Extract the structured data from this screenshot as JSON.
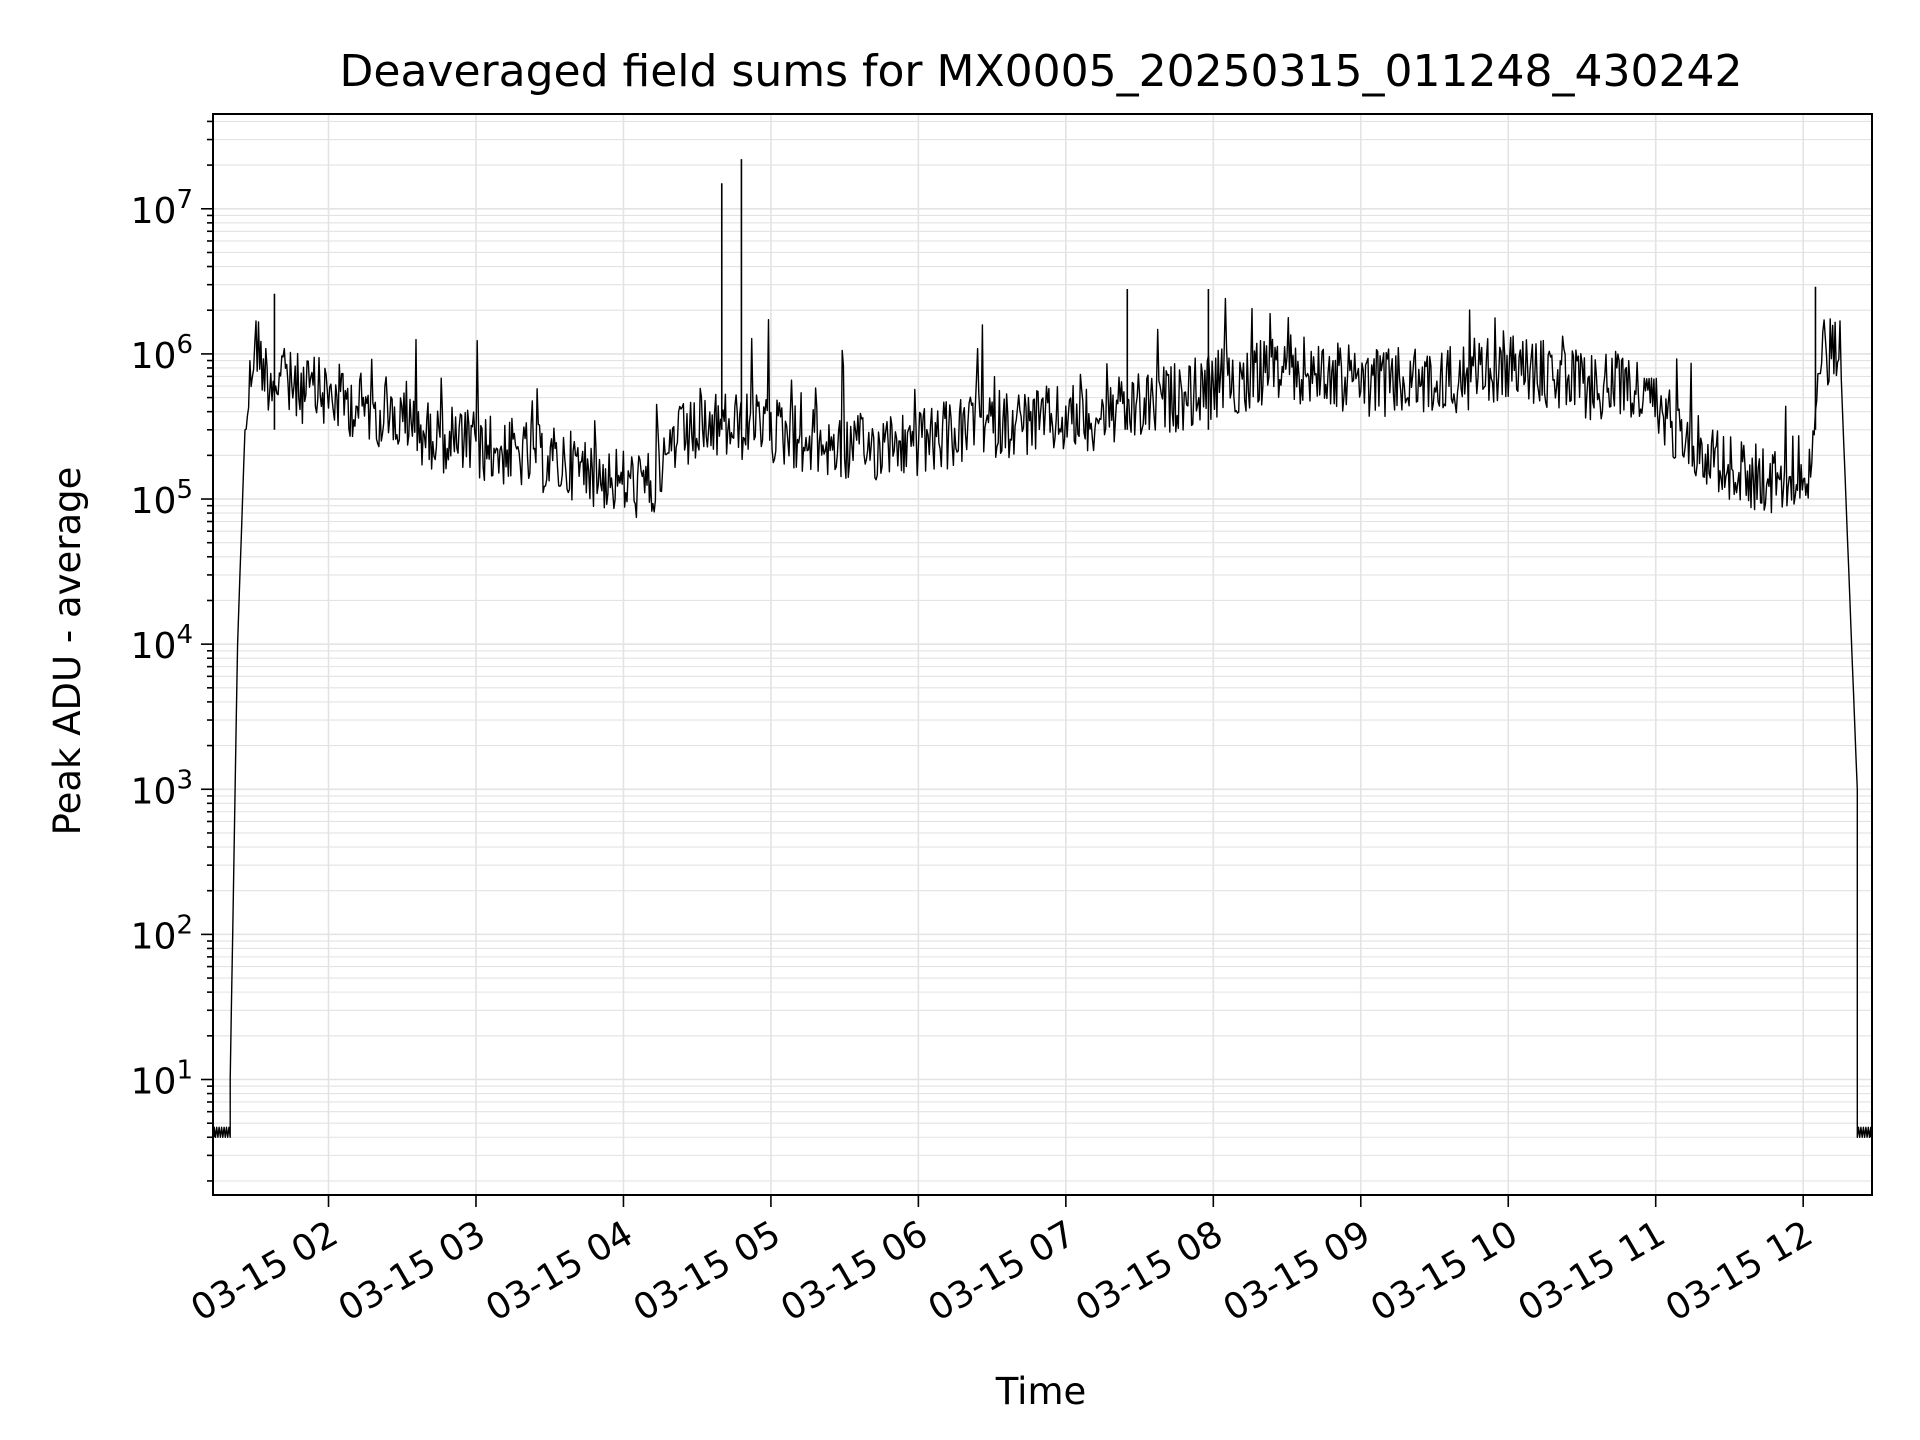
{
  "chart_data": {
    "type": "line",
    "title": "Deaveraged field sums for MX0005_20250315_011248_430242",
    "xlabel": "Time",
    "ylabel": "Peak ADU - average",
    "yscale": "log",
    "ylim": [
      1.6,
      45000000
    ],
    "xlim": [
      "2025-03-15 01:13",
      "2025-03-15 12:28"
    ],
    "grid": true,
    "line_color": "#000000",
    "grid_color": "#e3e3e3",
    "x_ticks": [
      {
        "value": "2025-03-15 02:00",
        "label": "03-15 02"
      },
      {
        "value": "2025-03-15 03:00",
        "label": "03-15 03"
      },
      {
        "value": "2025-03-15 04:00",
        "label": "03-15 04"
      },
      {
        "value": "2025-03-15 05:00",
        "label": "03-15 05"
      },
      {
        "value": "2025-03-15 06:00",
        "label": "03-15 06"
      },
      {
        "value": "2025-03-15 07:00",
        "label": "03-15 07"
      },
      {
        "value": "2025-03-15 08:00",
        "label": "03-15 08"
      },
      {
        "value": "2025-03-15 09:00",
        "label": "03-15 09"
      },
      {
        "value": "2025-03-15 10:00",
        "label": "03-15 10"
      },
      {
        "value": "2025-03-15 11:00",
        "label": "03-15 11"
      },
      {
        "value": "2025-03-15 12:00",
        "label": "03-15 12"
      }
    ],
    "y_ticks": [
      {
        "value": 10,
        "base": "10",
        "exp": "1"
      },
      {
        "value": 100,
        "base": "10",
        "exp": "2"
      },
      {
        "value": 1000,
        "base": "10",
        "exp": "3"
      },
      {
        "value": 10000,
        "base": "10",
        "exp": "4"
      },
      {
        "value": 100000,
        "base": "10",
        "exp": "5"
      },
      {
        "value": 1000000,
        "base": "10",
        "exp": "6"
      },
      {
        "value": 10000000,
        "base": "10",
        "exp": "7"
      }
    ],
    "series": [
      {
        "x": [
          "2025-03-15 01:13",
          "2025-03-15 01:20",
          "2025-03-15 01:20",
          "2025-03-15 01:23",
          "2025-03-15 01:26",
          "2025-03-15 01:30",
          "2025-03-15 01:35",
          "2025-03-15 01:45",
          "2025-03-15 02:00",
          "2025-03-15 02:20",
          "2025-03-15 02:40",
          "2025-03-15 03:00",
          "2025-03-15 03:20",
          "2025-03-15 03:40",
          "2025-03-15 04:00",
          "2025-03-15 04:12",
          "2025-03-15 04:20",
          "2025-03-15 04:40",
          "2025-03-15 05:00",
          "2025-03-15 05:30",
          "2025-03-15 06:00",
          "2025-03-15 06:30",
          "2025-03-15 07:00",
          "2025-03-15 07:30",
          "2025-03-15 08:00",
          "2025-03-15 08:30",
          "2025-03-15 09:00",
          "2025-03-15 09:30",
          "2025-03-15 10:00",
          "2025-03-15 10:30",
          "2025-03-15 10:50",
          "2025-03-15 11:10",
          "2025-03-15 11:30",
          "2025-03-15 11:50",
          "2025-03-15 12:03",
          "2025-03-15 12:08",
          "2025-03-15 12:15",
          "2025-03-15 12:22",
          "2025-03-15 12:22",
          "2025-03-15 12:28"
        ],
        "y": [
          4,
          4,
          10,
          10000,
          300000,
          1300000,
          700000,
          600000,
          520000,
          400000,
          280000,
          230000,
          200000,
          170000,
          130000,
          120000,
          250000,
          320000,
          300000,
          220000,
          240000,
          330000,
          350000,
          420000,
          600000,
          800000,
          650000,
          620000,
          850000,
          600000,
          600000,
          300000,
          160000,
          130000,
          180000,
          1000000,
          1100000,
          1000,
          4,
          4
        ]
      }
    ],
    "spikes": [
      {
        "x": "2025-03-15 04:40",
        "y": 15000000
      },
      {
        "x": "2025-03-15 04:48",
        "y": 22000000
      },
      {
        "x": "2025-03-15 07:25",
        "y": 2800000
      },
      {
        "x": "2025-03-15 07:58",
        "y": 2800000
      },
      {
        "x": "2025-03-15 01:38",
        "y": 2600000
      },
      {
        "x": "2025-03-15 12:05",
        "y": 2900000
      }
    ]
  }
}
